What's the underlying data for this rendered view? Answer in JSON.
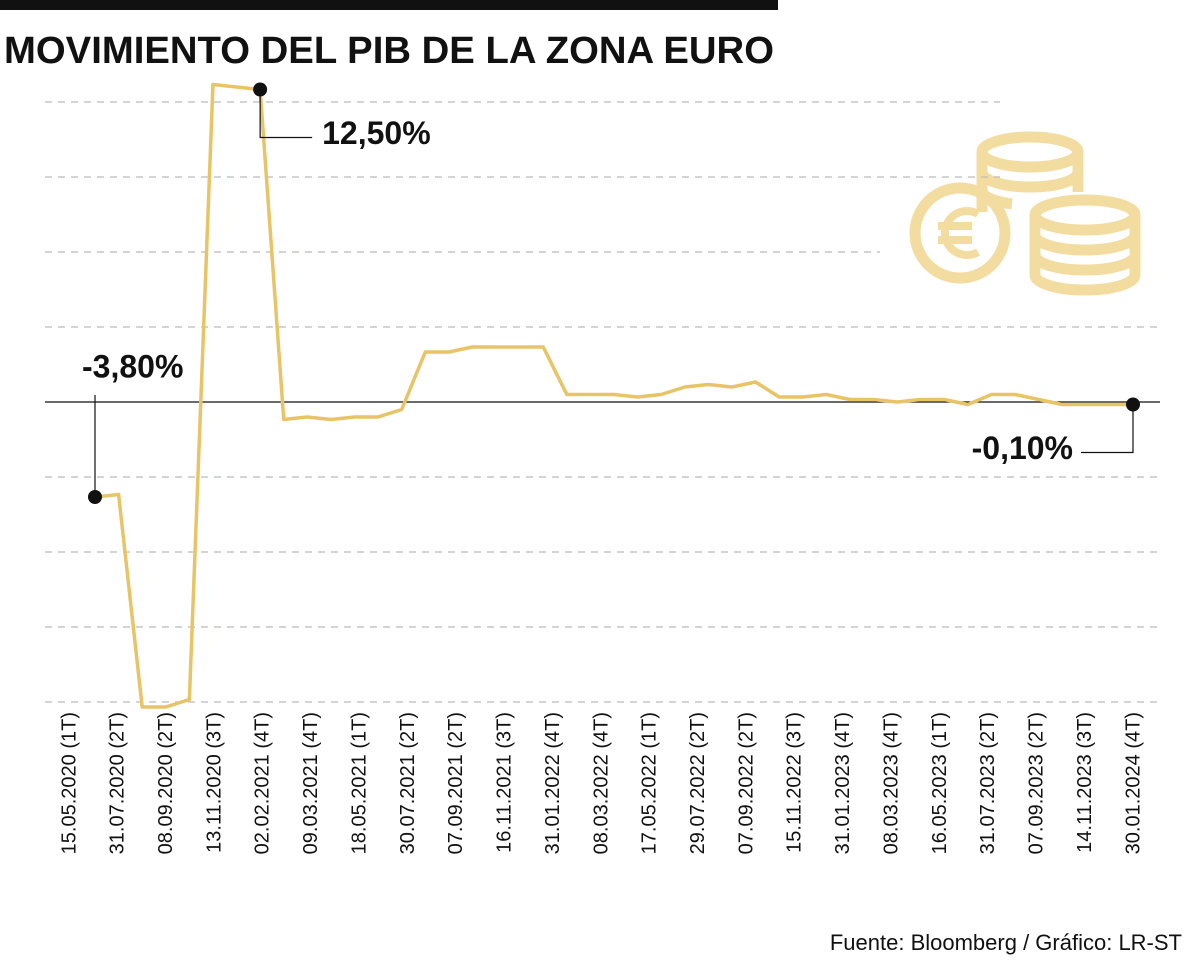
{
  "chart_data": {
    "type": "line",
    "title": "MOVIMIENTO DEL PIB DE LA ZONA EURO",
    "source": "Fuente: Bloomberg / Gráfico: LR-ST",
    "categories": [
      "15.05.2020 (1T)",
      null,
      "31.07.2020 (2T)",
      null,
      "08.09.2020 (2T)",
      null,
      "13.11.2020 (3T)",
      null,
      "02.02.2021 (4T)",
      null,
      "09.03.2021 (4T)",
      null,
      "18.05.2021 (1T)",
      null,
      "30.07.2021 (2T)",
      null,
      "07.09.2021 (2T)",
      null,
      "16.11.2021 (3T)",
      null,
      "31.01.2022 (4T)",
      null,
      "08.03.2022 (4T)",
      null,
      "17.05.2022 (1T)",
      null,
      "29.07.2022 (2T)",
      null,
      "07.09.2022 (2T)",
      null,
      "15.11.2022 (3T)",
      null,
      "31.01.2023 (4T)",
      null,
      "08.03.2023 (4T)",
      null,
      "16.05.2023 (1T)",
      null,
      "31.07.2023 (2T)",
      null,
      "07.09.2023 (2T)",
      null,
      "14.11.2023 (3T)",
      null,
      "30.01.2024 (4T)"
    ],
    "values": [
      -3.8,
      -3.7,
      -12.2,
      -12.2,
      -11.9,
      12.7,
      12.6,
      12.5,
      -0.7,
      -0.6,
      -0.7,
      -0.6,
      -0.6,
      -0.3,
      2.0,
      2.0,
      2.2,
      2.2,
      2.2,
      2.2,
      0.3,
      0.3,
      0.3,
      0.2,
      0.3,
      0.6,
      0.7,
      0.6,
      0.8,
      0.2,
      0.2,
      0.3,
      0.1,
      0.1,
      0,
      0.1,
      0.1,
      -0.1,
      0.3,
      0.3,
      0.1,
      -0.1,
      -0.1,
      -0.1,
      -0.1
    ],
    "value_labels": [
      "-3,80%",
      null,
      null,
      null,
      null,
      null,
      null,
      "12,50%",
      null,
      null,
      null,
      null,
      null,
      null,
      null,
      null,
      null,
      null,
      null,
      null,
      null,
      null,
      null,
      null,
      null,
      null,
      null,
      null,
      null,
      null,
      null,
      null,
      null,
      null,
      null,
      null,
      null,
      null,
      null,
      null,
      null,
      null,
      null,
      null,
      "-0,10%"
    ],
    "color": "#e8c467",
    "ylim": [
      -13,
      13
    ],
    "yticks": [
      -12,
      -9,
      -6,
      -3,
      0,
      3,
      6,
      9,
      12
    ],
    "grid": true
  }
}
